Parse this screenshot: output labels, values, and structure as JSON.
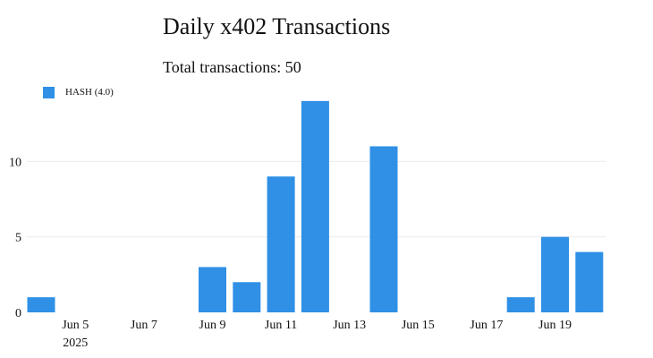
{
  "chart_data": {
    "type": "bar",
    "title": "Daily x402 Transactions",
    "subtitle": "Total transactions: 50",
    "xlabel": "",
    "ylabel": "",
    "x": [
      "2025-06-04",
      "2025-06-05",
      "2025-06-06",
      "2025-06-07",
      "2025-06-08",
      "2025-06-09",
      "2025-06-10",
      "2025-06-11",
      "2025-06-12",
      "2025-06-13",
      "2025-06-14",
      "2025-06-15",
      "2025-06-16",
      "2025-06-17",
      "2025-06-18",
      "2025-06-19",
      "2025-06-20"
    ],
    "series": [
      {
        "name": "HASH (4.0)",
        "color": "#2f90e6",
        "values": [
          1,
          0,
          0,
          0,
          0,
          3,
          2,
          9,
          14,
          0,
          11,
          0,
          0,
          0,
          1,
          5,
          4
        ]
      }
    ],
    "ylim": [
      0,
      15
    ],
    "yticks": [
      0,
      5,
      10
    ],
    "xticks": [
      {
        "date": "2025-06-05",
        "label": "Jun 5",
        "sublabel": "2025"
      },
      {
        "date": "2025-06-07",
        "label": "Jun 7"
      },
      {
        "date": "2025-06-09",
        "label": "Jun 9"
      },
      {
        "date": "2025-06-11",
        "label": "Jun 11"
      },
      {
        "date": "2025-06-13",
        "label": "Jun 13"
      },
      {
        "date": "2025-06-15",
        "label": "Jun 15"
      },
      {
        "date": "2025-06-17",
        "label": "Jun 17"
      },
      {
        "date": "2025-06-19",
        "label": "Jun 19"
      }
    ],
    "grid": true,
    "legend": "top-left"
  }
}
